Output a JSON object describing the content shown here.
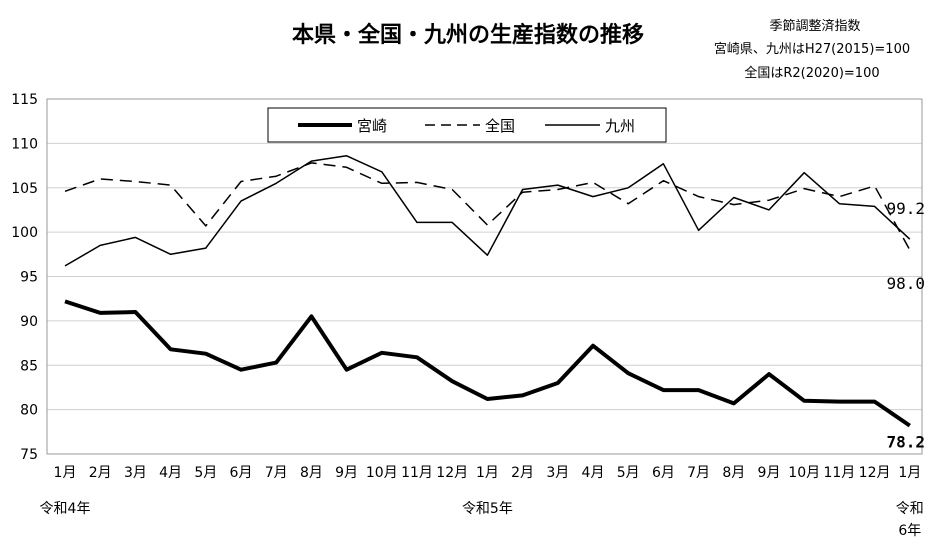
{
  "chart_data": {
    "type": "line",
    "title": "本県・全国・九州の生産指数の推移",
    "notes": [
      "季節調整済指数",
      "宮崎県、九州はH27(2015)=100",
      "全国はR2(2020)=100"
    ],
    "categories": [
      "1月",
      "2月",
      "3月",
      "4月",
      "5月",
      "6月",
      "7月",
      "8月",
      "9月",
      "10月",
      "11月",
      "12月",
      "1月",
      "2月",
      "3月",
      "4月",
      "5月",
      "6月",
      "7月",
      "8月",
      "9月",
      "10月",
      "11月",
      "12月",
      "1月"
    ],
    "year_labels": [
      {
        "index": 0,
        "text": "令和4年"
      },
      {
        "index": 12,
        "text": "令和5年"
      },
      {
        "index": 24,
        "text": "令和\n6年"
      }
    ],
    "ylim": [
      75,
      115
    ],
    "yticks": [
      75,
      80,
      85,
      90,
      95,
      100,
      105,
      110,
      115
    ],
    "grid": true,
    "legend": "top-center",
    "series": [
      {
        "name": "宮崎",
        "style": "thick-solid",
        "values": [
          92.2,
          90.9,
          91.0,
          86.8,
          86.3,
          84.5,
          85.3,
          90.5,
          84.5,
          86.4,
          85.9,
          83.2,
          81.2,
          81.6,
          83.0,
          87.2,
          84.1,
          82.2,
          82.2,
          80.7,
          84.0,
          81.0,
          80.9,
          80.9,
          78.2
        ],
        "end_label": "78.2"
      },
      {
        "name": "全国",
        "style": "dashed",
        "values": [
          104.6,
          106.0,
          105.7,
          105.3,
          100.7,
          105.7,
          106.3,
          107.8,
          107.3,
          105.5,
          105.6,
          104.8,
          100.8,
          104.5,
          104.8,
          105.6,
          103.2,
          105.8,
          104.0,
          103.1,
          103.6,
          104.9,
          104.0,
          105.2,
          98.0
        ],
        "end_label": "98.0"
      },
      {
        "name": "九州",
        "style": "solid",
        "values": [
          96.2,
          98.5,
          99.4,
          97.5,
          98.2,
          103.5,
          105.5,
          108.0,
          108.6,
          106.8,
          101.1,
          101.1,
          97.4,
          104.8,
          105.3,
          104.0,
          105.0,
          107.7,
          100.2,
          103.9,
          102.5,
          106.7,
          103.2,
          102.9,
          99.2
        ],
        "end_label": "99.2"
      }
    ]
  }
}
